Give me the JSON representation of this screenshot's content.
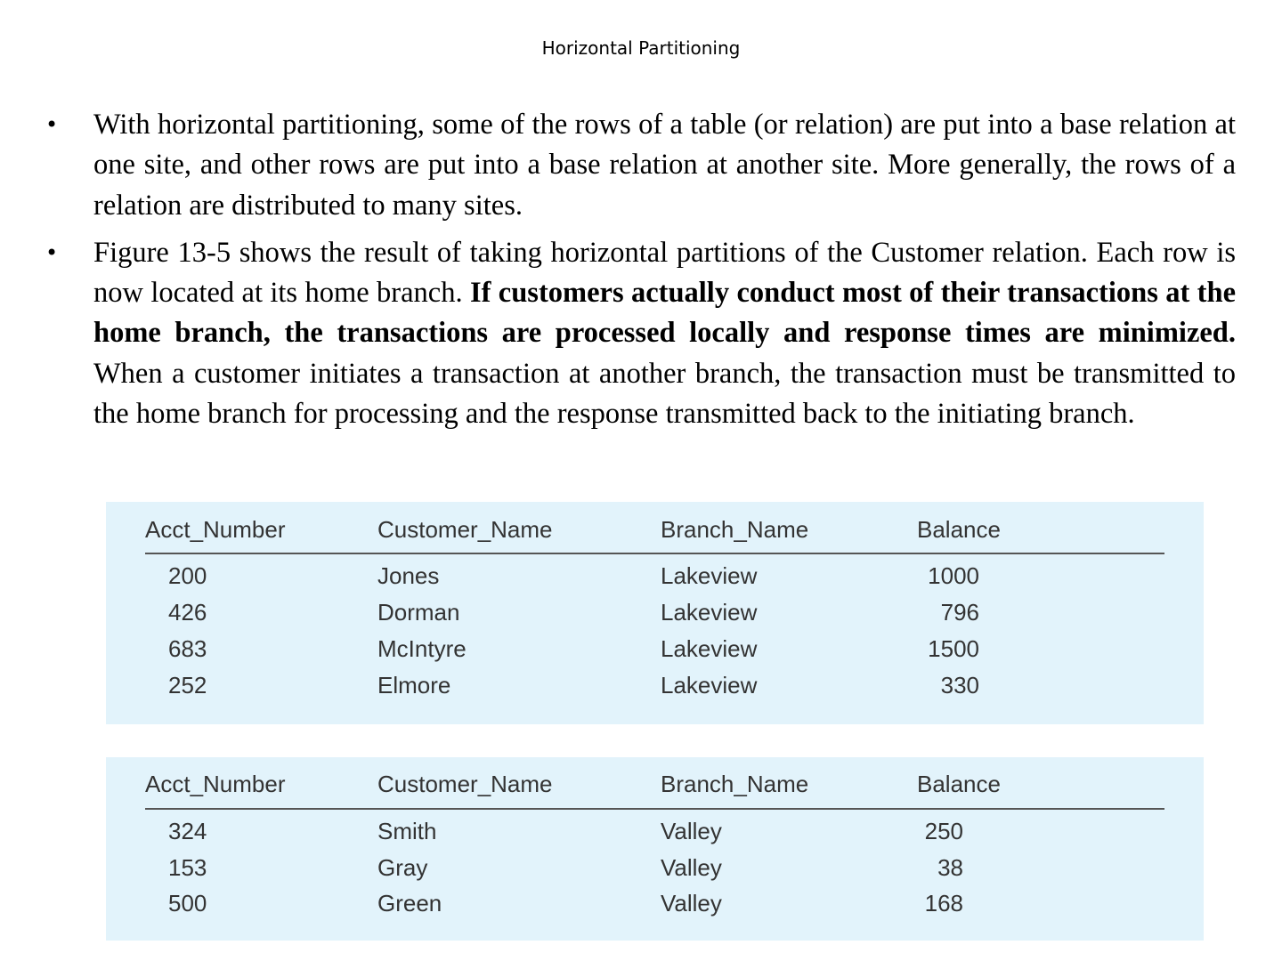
{
  "title": "Horizontal Partitioning",
  "bullets": [
    {
      "text": "With horizontal partitioning, some of the rows of a table (or relation) are put into a base relation at one site, and other rows are put into a base relation at another site. More generally, the rows of a relation are distributed to many sites."
    },
    {
      "text_before": "Figure 13-5 shows the result of taking horizontal partitions of the Customer relation. Each row is now located at its home branch. ",
      "bold": "If customers actually conduct most of their transactions at the home branch, the transactions are processed locally and response times are minimized.",
      "text_after": " When a customer initiates a transaction at another branch, the transaction must be transmitted to the home branch for processing and the response transmitted back to the initiating branch."
    }
  ],
  "columns": [
    "Acct_Number",
    "Customer_Name",
    "Branch_Name",
    "Balance"
  ],
  "tables": [
    {
      "rows": [
        [
          "200",
          "Jones",
          "Lakeview",
          "1000"
        ],
        [
          "426",
          "Dorman",
          "Lakeview",
          "796"
        ],
        [
          "683",
          "McIntyre",
          "Lakeview",
          "1500"
        ],
        [
          "252",
          "Elmore",
          "Lakeview",
          "330"
        ]
      ]
    },
    {
      "rows": [
        [
          "324",
          "Smith",
          "Valley",
          "250"
        ],
        [
          "153",
          "Gray",
          "Valley",
          "38"
        ],
        [
          "500",
          "Green",
          "Valley",
          "168"
        ]
      ]
    }
  ],
  "colors": {
    "table_background": "#e2f3fb",
    "table_text": "#333333"
  }
}
